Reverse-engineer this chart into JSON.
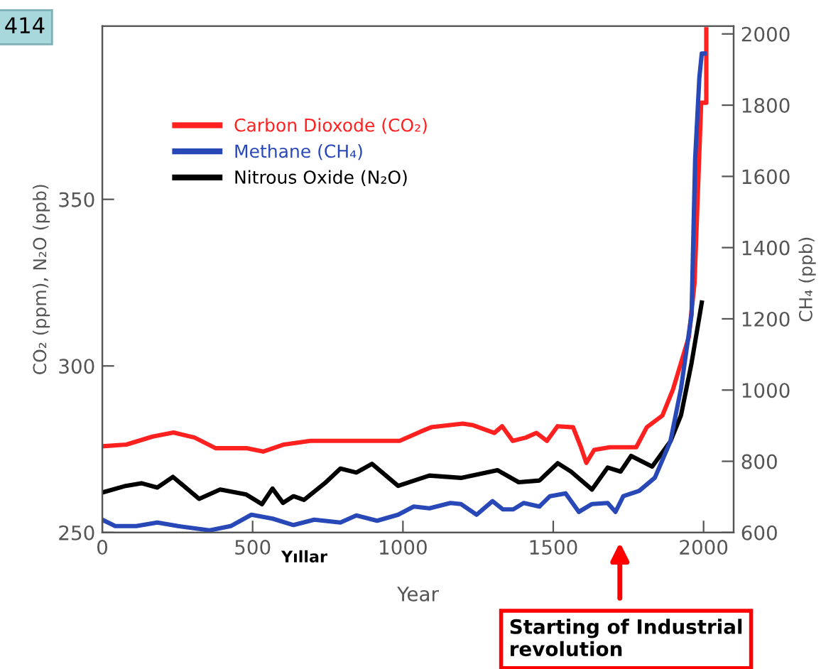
{
  "chart_data": {
    "type": "line",
    "xlabel": "Year",
    "ylabel": "CO₂ (ppm), N₂O (ppb)",
    "y2label": "CH₄ (ppb)",
    "xlim": [
      0,
      2100
    ],
    "xticks": [
      0,
      500,
      1000,
      1500,
      2000
    ],
    "ylim": [
      250,
      402
    ],
    "yticks": [
      250,
      300,
      350
    ],
    "y2lim": [
      600,
      2022
    ],
    "y2ticks": [
      600,
      800,
      1000,
      1200,
      1400,
      1600,
      1800,
      2000
    ],
    "grid": false,
    "legend": "top left",
    "line_style": "solid",
    "marker": "none",
    "series": [
      {
        "name": "Carbon Dioxode (CO₂)",
        "color": "#ff2020",
        "x": [
          1,
          80,
          167,
          237,
          307,
          377,
          482,
          535,
          604,
          692,
          744,
          884,
          989,
          1059,
          1094,
          1199,
          1234,
          1304,
          1330,
          1365,
          1409,
          1444,
          1479,
          1514,
          1566,
          1592,
          1610,
          1636,
          1688,
          1741,
          1776,
          1811,
          1863,
          1898,
          1951,
          1970,
          1992,
          2009,
          2009
        ],
        "values": [
          275.9,
          276.4,
          278.8,
          280,
          278.5,
          275.3,
          275.3,
          274.3,
          276.4,
          277.5,
          277.5,
          277.5,
          277.5,
          280.3,
          281.6,
          282.7,
          282.2,
          279.9,
          281.9,
          277.5,
          278.5,
          279.9,
          277.5,
          281.9,
          281.6,
          275.6,
          270.9,
          274.8,
          275.6,
          275.6,
          275.6,
          281.6,
          285.1,
          292.9,
          308.7,
          325,
          379,
          379,
          401
        ]
      },
      {
        "name": "Methane (CH₄)",
        "color": "#2848b8",
        "axis": "y2",
        "x": [
          0,
          43,
          113,
          183,
          252,
          357,
          427,
          496,
          566,
          636,
          705,
          792,
          845,
          914,
          984,
          1036,
          1088,
          1158,
          1193,
          1245,
          1298,
          1332,
          1367,
          1402,
          1454,
          1489,
          1541,
          1585,
          1629,
          1681,
          1707,
          1733,
          1786,
          1838,
          1890,
          1925,
          1960,
          1972,
          1986,
          1994,
          2003
        ],
        "values": [
          636,
          618,
          618,
          628,
          618,
          606,
          618,
          650,
          639,
          621,
          636,
          628,
          648,
          633,
          650,
          673,
          668,
          683,
          680,
          650,
          688,
          665,
          665,
          683,
          673,
          702,
          710,
          658,
          680,
          683,
          658,
          702,
          717,
          754,
          857,
          1005,
          1212,
          1650,
          1878,
          1945,
          1945
        ]
      },
      {
        "name": "Nitrous Oxide (N₂O)",
        "color": "#000000",
        "x": [
          0,
          78,
          130,
          183,
          235,
          322,
          392,
          479,
          531,
          566,
          601,
          636,
          671,
          740,
          792,
          845,
          897,
          984,
          1088,
          1193,
          1315,
          1385,
          1454,
          1515,
          1559,
          1629,
          1681,
          1724,
          1759,
          1829,
          1890,
          1925,
          1960,
          1994
        ],
        "values": [
          262,
          264,
          264.8,
          263.5,
          266.7,
          260.1,
          262.9,
          261.4,
          258.5,
          263.2,
          258.9,
          260.9,
          259.8,
          264.8,
          269.2,
          268,
          270.6,
          264,
          267.1,
          266.4,
          268.7,
          265.1,
          265.6,
          270.8,
          268.3,
          262.9,
          269.5,
          268.3,
          273,
          269.8,
          277.4,
          285.2,
          300.9,
          319
        ]
      }
    ],
    "annotations": [
      "414",
      "Yıllar",
      "Starting of Industrial revolution"
    ]
  }
}
